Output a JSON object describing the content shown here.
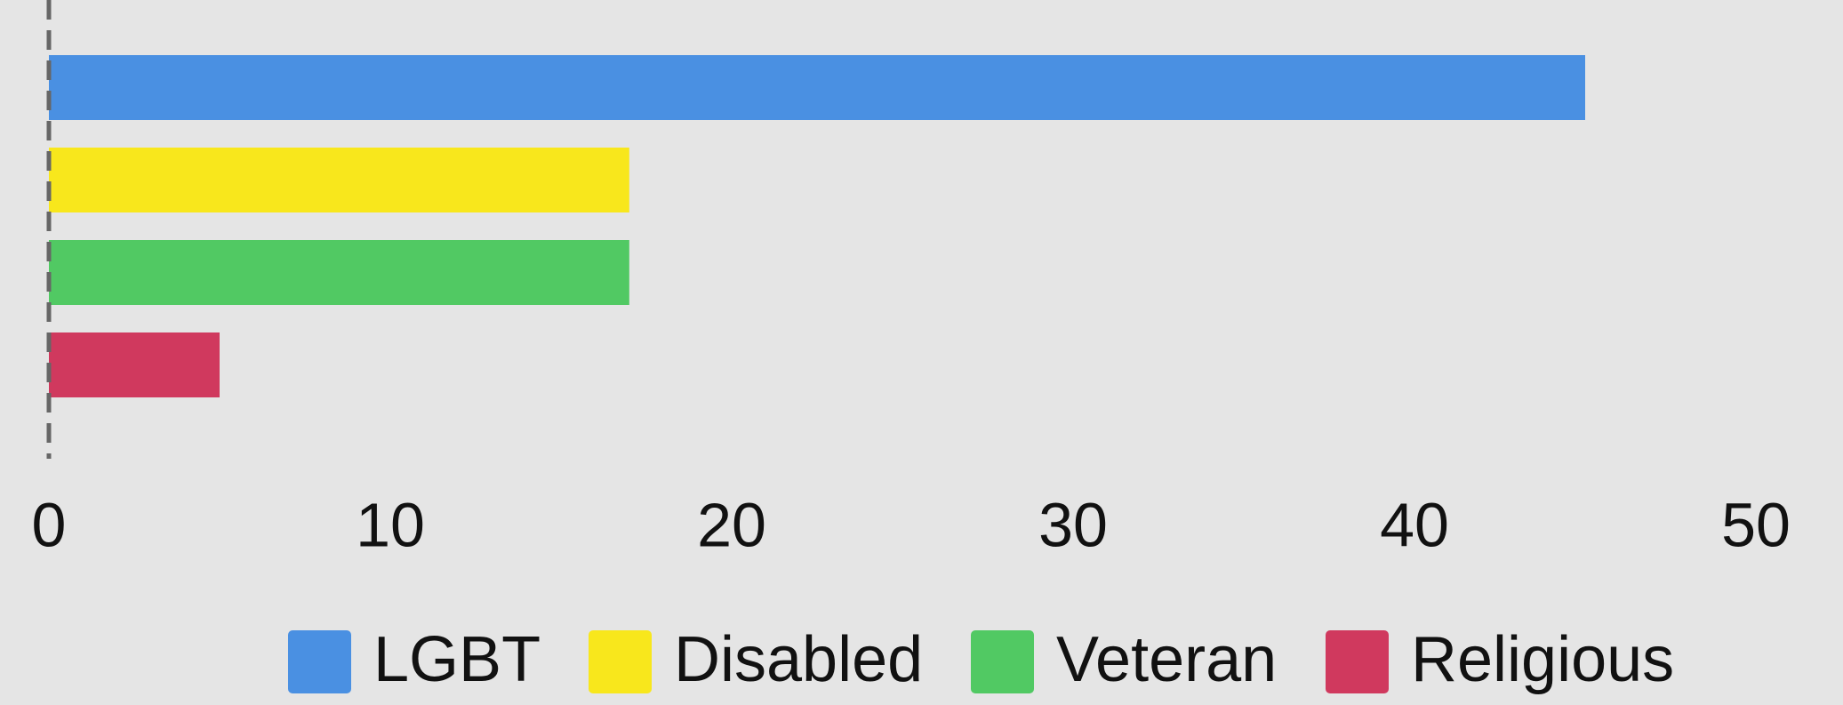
{
  "chart_data": {
    "type": "hbar",
    "categories": [
      "LGBT",
      "Disabled",
      "Veteran",
      "Religious"
    ],
    "values": [
      45,
      17,
      17,
      5
    ],
    "colors": [
      "#4a90e2",
      "#f8e71c",
      "#51c963",
      "#d0395e"
    ],
    "xlim": [
      0,
      50
    ],
    "xticks": [
      0,
      10,
      20,
      30,
      40,
      50
    ],
    "legend": "bottom"
  }
}
